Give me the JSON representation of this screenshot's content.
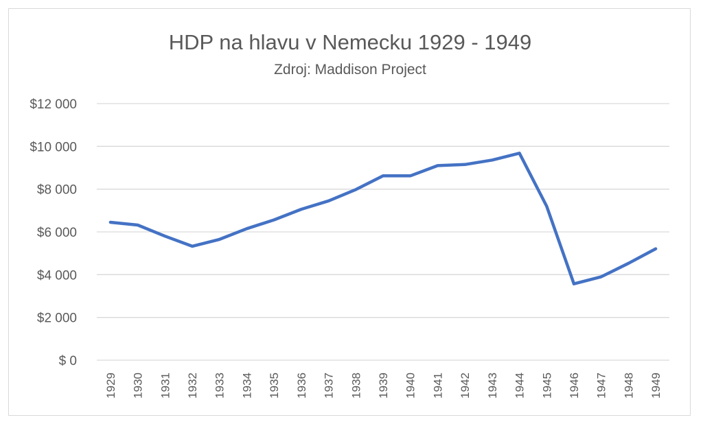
{
  "chart_data": {
    "type": "line",
    "title": "HDP na hlavu v Nemecku 1929 - 1949",
    "subtitle": "Zdroj: Maddison Project",
    "xlabel": "",
    "ylabel": "",
    "ylim": [
      0,
      12000
    ],
    "yticks": [
      0,
      2000,
      4000,
      6000,
      8000,
      10000,
      12000
    ],
    "ytick_labels": [
      "$ 0",
      "$2 000",
      "$4 000",
      "$6 000",
      "$8 000",
      "$10 000",
      "$12 000"
    ],
    "grid": true,
    "legend": "none",
    "line_color": "#4472c4",
    "grid_color": "#d9d9d9",
    "categories": [
      "1929",
      "1930",
      "1931",
      "1932",
      "1933",
      "1934",
      "1935",
      "1936",
      "1937",
      "1938",
      "1939",
      "1940",
      "1941",
      "1942",
      "1943",
      "1944",
      "1945",
      "1946",
      "1947",
      "1948",
      "1949"
    ],
    "series": [
      {
        "values": [
          6450,
          6320,
          5800,
          5330,
          5650,
          6150,
          6560,
          7060,
          7450,
          7980,
          8620,
          8620,
          9100,
          9150,
          9360,
          9680,
          7200,
          3570,
          3900,
          4530,
          5210
        ]
      }
    ]
  }
}
